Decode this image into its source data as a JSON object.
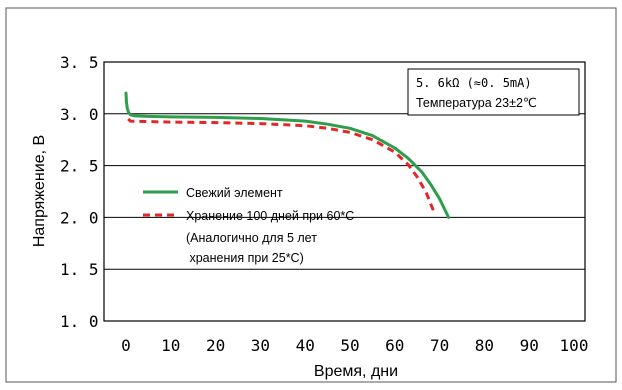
{
  "chart_data": {
    "type": "line",
    "title": "",
    "xlabel": "Время, дни",
    "ylabel": "Напряжение, В",
    "xlim": [
      0,
      100
    ],
    "ylim": [
      1.0,
      3.5
    ],
    "x_ticks": [
      0,
      10,
      20,
      30,
      40,
      50,
      60,
      70,
      80,
      90,
      100
    ],
    "y_ticks": [
      1.0,
      1.5,
      2.0,
      2.5,
      3.0,
      3.5
    ],
    "x_tick_labels": [
      "0",
      "10",
      "20",
      "30",
      "40",
      "50",
      "60",
      "70",
      "80",
      "90",
      "100"
    ],
    "y_tick_labels": [
      "1. 0",
      "1. 5",
      "2. 0",
      "2. 5",
      "3. 0",
      "3. 5"
    ],
    "grid": "horizontal",
    "legend_position": "left-middle",
    "annotations": [
      "5. 6kΩ (≈0. 5mA)",
      "Температура  23±2℃"
    ],
    "series": [
      {
        "name": "Свежий элемент",
        "color": "#2e9e4a",
        "line_style": "solid",
        "x": [
          0,
          0.1,
          0.3,
          0.6,
          1,
          2,
          5,
          10,
          20,
          30,
          40,
          45,
          50,
          55,
          60,
          63,
          66,
          68,
          70,
          71,
          72
        ],
        "y": [
          3.2,
          3.12,
          3.05,
          3.01,
          2.99,
          2.98,
          2.975,
          2.97,
          2.965,
          2.955,
          2.93,
          2.9,
          2.86,
          2.79,
          2.67,
          2.57,
          2.44,
          2.32,
          2.18,
          2.09,
          2.0
        ]
      },
      {
        "name": "Хранение 100 дней при 60*C",
        "color": "#e02828",
        "line_style": "dashed",
        "x": [
          0.5,
          1,
          5,
          10,
          20,
          30,
          40,
          45,
          50,
          55,
          60,
          63,
          65,
          67,
          68,
          69
        ],
        "y": [
          2.95,
          2.93,
          2.925,
          2.92,
          2.915,
          2.905,
          2.885,
          2.86,
          2.82,
          2.75,
          2.63,
          2.51,
          2.39,
          2.24,
          2.13,
          2.03
        ]
      }
    ],
    "legend_entries": [
      {
        "label": "Свежий элемент",
        "color": "#2e9e4a",
        "line_style": "solid"
      },
      {
        "label": "Хранение 100 дней при 60*C",
        "color": "#e02828",
        "line_style": "dashed"
      }
    ],
    "legend_note_lines": [
      "(Аналогично для 5 лет",
      " хранения при 25*C)"
    ]
  }
}
